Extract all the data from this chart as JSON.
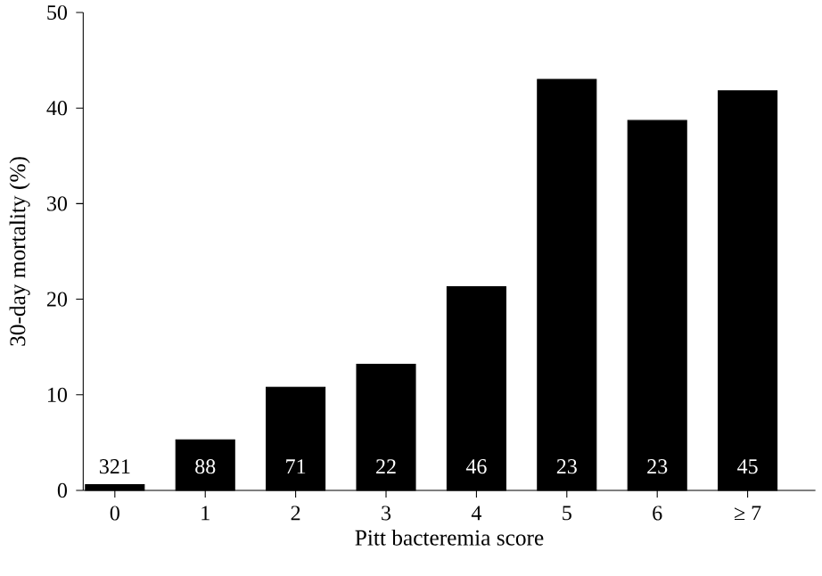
{
  "chart_data": {
    "type": "bar",
    "xlabel": "Pitt bacteremia score",
    "ylabel": "30-day mortality (%)",
    "categories": [
      "0",
      "1",
      "2",
      "3",
      "4",
      "5",
      "6",
      "≥ 7"
    ],
    "values": [
      0.6,
      5.3,
      10.8,
      13.2,
      21.3,
      43.0,
      38.7,
      41.8
    ],
    "color": "#000000",
    "ylim": [
      0,
      50
    ],
    "yticks": [
      0,
      10,
      20,
      30,
      40,
      50
    ],
    "grid": false,
    "annotations": [
      "321",
      "88",
      "71",
      "22",
      "46",
      "23",
      "23",
      "45"
    ]
  }
}
